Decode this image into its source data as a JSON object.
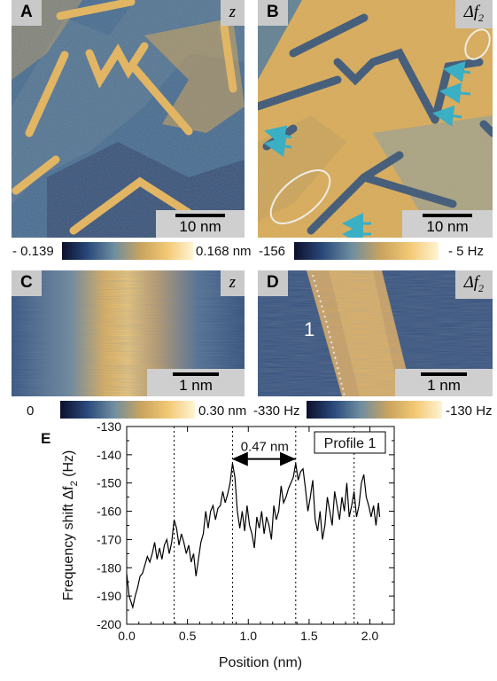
{
  "panels": {
    "A": {
      "label": "A",
      "quantity": "z",
      "scale": "10 nm"
    },
    "B": {
      "label": "B",
      "quantity": "Δf",
      "quantity_sub": "2",
      "scale": "10 nm"
    },
    "C": {
      "label": "C",
      "quantity": "z",
      "scale": "1 nm"
    },
    "D": {
      "label": "D",
      "quantity": "Δf",
      "quantity_sub": "2",
      "scale": "1 nm",
      "profile_number": "1"
    }
  },
  "colorbars": {
    "top_left": {
      "min": "- 0.139",
      "max": "0.168 nm"
    },
    "top_right": {
      "min": "-156",
      "max": "- 5 Hz"
    },
    "bottom_left": {
      "min": "0",
      "max": "0.30 nm"
    },
    "bottom_right": {
      "min": "-330 Hz",
      "max": "-130 Hz"
    }
  },
  "colors": {
    "dark": "#14183a",
    "mid_blue": "#3f6a94",
    "gold": "#e7b453",
    "light": "#fff3cf",
    "cyan_arrow": "#1fb3d6",
    "label_bg": "#c9c9c9"
  },
  "chart_data": {
    "type": "line",
    "panel_label": "E",
    "xlabel": "Position (nm)",
    "ylabel": "Frequency shift Δf",
    "ylabel_sub": "2",
    "ylabel_unit": "(Hz)",
    "xlim": [
      0.0,
      2.2
    ],
    "ylim": [
      -200,
      -130
    ],
    "xticks": [
      "0.0",
      "0.5",
      "1.0",
      "1.5",
      "2.0"
    ],
    "yticks": [
      "-130",
      "-140",
      "-150",
      "-160",
      "-170",
      "-180",
      "-190",
      "-200"
    ],
    "legend": "Profile 1",
    "annotation": "0.47 nm",
    "annotation_span": [
      0.88,
      1.39
    ],
    "vlines": [
      0.39,
      0.87,
      1.39,
      1.87
    ],
    "series": [
      {
        "x": [
          0.0,
          0.02,
          0.05,
          0.07,
          0.09,
          0.11,
          0.13,
          0.15,
          0.17,
          0.19,
          0.21,
          0.23,
          0.25,
          0.27,
          0.29,
          0.31,
          0.33,
          0.35,
          0.37,
          0.39,
          0.41,
          0.43,
          0.45,
          0.47,
          0.49,
          0.51,
          0.53,
          0.55,
          0.57,
          0.59,
          0.61,
          0.63,
          0.65,
          0.67,
          0.69,
          0.71,
          0.73,
          0.75,
          0.77,
          0.79,
          0.81,
          0.83,
          0.85,
          0.87,
          0.89,
          0.91,
          0.93,
          0.95,
          0.97,
          0.99,
          1.01,
          1.03,
          1.05,
          1.07,
          1.09,
          1.11,
          1.13,
          1.15,
          1.17,
          1.19,
          1.21,
          1.23,
          1.25,
          1.27,
          1.29,
          1.31,
          1.33,
          1.35,
          1.37,
          1.39,
          1.41,
          1.43,
          1.45,
          1.47,
          1.49,
          1.51,
          1.53,
          1.55,
          1.57,
          1.59,
          1.61,
          1.63,
          1.65,
          1.67,
          1.69,
          1.71,
          1.73,
          1.75,
          1.77,
          1.79,
          1.81,
          1.83,
          1.85,
          1.87,
          1.89,
          1.91,
          1.93,
          1.95,
          1.97,
          1.99,
          2.01,
          2.03,
          2.05,
          2.07,
          2.08
        ],
        "y": [
          -182,
          -190,
          -194,
          -190,
          -187,
          -183,
          -182,
          -179,
          -176,
          -178,
          -175,
          -171,
          -177,
          -173,
          -177,
          -172,
          -170,
          -175,
          -171,
          -163,
          -166,
          -172,
          -168,
          -171,
          -175,
          -172,
          -178,
          -175,
          -183,
          -177,
          -171,
          -168,
          -160,
          -166,
          -160,
          -158,
          -163,
          -159,
          -158,
          -153,
          -157,
          -154,
          -150,
          -143,
          -148,
          -160,
          -166,
          -160,
          -167,
          -158,
          -165,
          -168,
          -173,
          -162,
          -166,
          -160,
          -168,
          -162,
          -165,
          -170,
          -158,
          -163,
          -160,
          -151,
          -157,
          -155,
          -152,
          -150,
          -148,
          -143,
          -149,
          -146,
          -145,
          -152,
          -160,
          -155,
          -149,
          -163,
          -167,
          -160,
          -170,
          -165,
          -155,
          -160,
          -165,
          -153,
          -158,
          -163,
          -155,
          -160,
          -150,
          -162,
          -158,
          -153,
          -162,
          -158,
          -150,
          -147,
          -155,
          -158,
          -162,
          -158,
          -165,
          -157,
          -162
        ]
      }
    ]
  }
}
